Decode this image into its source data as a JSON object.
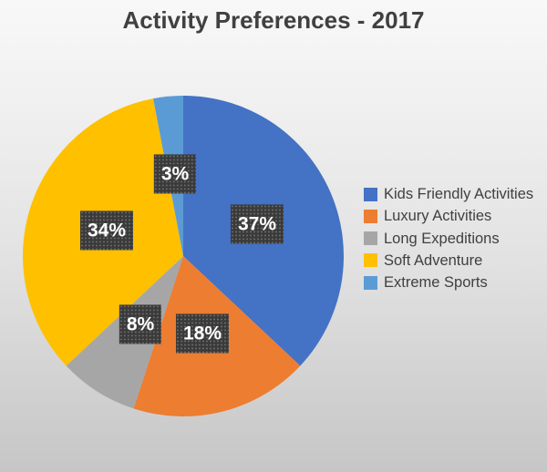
{
  "chart_data": {
    "type": "pie",
    "title": "Activity Preferences - 2017",
    "unit": "percent",
    "start_angle_deg": 0,
    "direction": "clockwise",
    "legend_position": "right",
    "grid": false,
    "slices": [
      {
        "label": "Kids Friendly Activities",
        "value": 37,
        "data_label": "37%",
        "color": "#4472C4"
      },
      {
        "label": "Luxury Activities",
        "value": 18,
        "data_label": "18%",
        "color": "#ED7D31"
      },
      {
        "label": "Long Expeditions",
        "value": 8,
        "data_label": "8%",
        "color": "#A6A6A6"
      },
      {
        "label": "Soft Adventure",
        "value": 34,
        "data_label": "34%",
        "color": "#FFC000"
      },
      {
        "label": "Extreme Sports",
        "value": 3,
        "data_label": "3%",
        "color": "#5B9BD5"
      }
    ],
    "data_label_style": {
      "background": "#3A3A3A",
      "pattern": "dotted",
      "text_color": "#FFFFFF"
    },
    "title_color": "#404040",
    "legend_text_color": "#404040"
  }
}
